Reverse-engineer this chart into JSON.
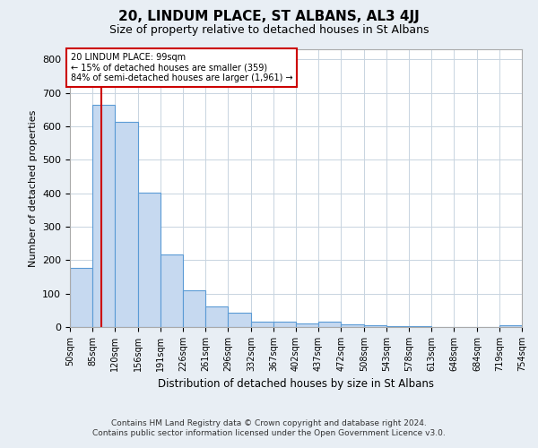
{
  "title": "20, LINDUM PLACE, ST ALBANS, AL3 4JJ",
  "subtitle": "Size of property relative to detached houses in St Albans",
  "xlabel": "Distribution of detached houses by size in St Albans",
  "ylabel": "Number of detached properties",
  "footer_line1": "Contains HM Land Registry data © Crown copyright and database right 2024.",
  "footer_line2": "Contains public sector information licensed under the Open Government Licence v3.0.",
  "annotation_line1": "20 LINDUM PLACE: 99sqm",
  "annotation_line2": "← 15% of detached houses are smaller (359)",
  "annotation_line3": "84% of semi-detached houses are larger (1,961) →",
  "property_size": 99,
  "bin_edges": [
    50,
    85,
    120,
    156,
    191,
    226,
    261,
    296,
    332,
    367,
    402,
    437,
    472,
    508,
    543,
    578,
    613,
    648,
    684,
    719,
    754
  ],
  "bar_heights": [
    178,
    663,
    612,
    401,
    218,
    110,
    62,
    42,
    17,
    16,
    12,
    15,
    9,
    5,
    2,
    2,
    1,
    0,
    0,
    5
  ],
  "bar_color": "#c6d9f0",
  "bar_edge_color": "#5b9bd5",
  "red_line_color": "#cc0000",
  "annotation_box_edgecolor": "#cc0000",
  "grid_color": "#c8d4e0",
  "plot_bg_color": "#ffffff",
  "fig_bg_color": "#e8eef4",
  "ylim": [
    0,
    830
  ],
  "yticks": [
    0,
    100,
    200,
    300,
    400,
    500,
    600,
    700,
    800
  ]
}
